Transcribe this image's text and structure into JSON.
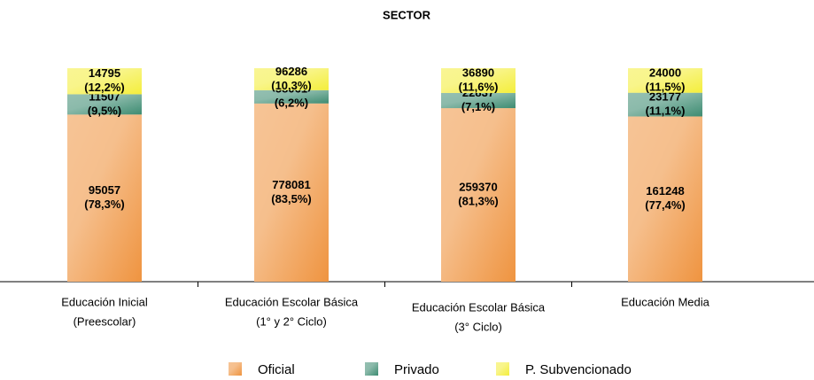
{
  "chart_data": {
    "type": "stacked_bar",
    "title": "SECTOR",
    "categories": [
      [
        "Educación Inicial",
        "(Preescolar)"
      ],
      [
        "Educación Escolar Básica",
        "(1° y 2° Ciclo)"
      ],
      [
        "Educación Escolar Básica",
        "(3° Ciclo)"
      ],
      [
        "Educación Media"
      ]
    ],
    "ylim": [
      0,
      100
    ],
    "series": [
      {
        "name": "Oficial",
        "color": "#ef9440",
        "counts": [
          95057,
          778081,
          259370,
          161248
        ],
        "values": [
          78.3,
          83.5,
          81.3,
          77.4
        ],
        "value_labels": [
          "(78,3%)",
          "(83,5%)",
          "(81,3%)",
          "(77,4%)"
        ]
      },
      {
        "name": "Privado",
        "color": "#3e8c72",
        "counts": [
          11507,
          58061,
          22837,
          23177
        ],
        "values": [
          9.5,
          6.2,
          7.1,
          11.1
        ],
        "value_labels": [
          "(9,5%)",
          "(6,2%)",
          "(7,1%)",
          "(11,1%)"
        ]
      },
      {
        "name": "P. Subvencionado",
        "color": "#f4ee3c",
        "counts": [
          14795,
          96286,
          36890,
          24000
        ],
        "values": [
          12.2,
          10.3,
          11.6,
          11.5
        ],
        "value_labels": [
          "(12,2%)",
          "(10,3%)",
          "(11,6%)",
          "(11,5%)"
        ]
      }
    ],
    "legend": "bottom"
  }
}
